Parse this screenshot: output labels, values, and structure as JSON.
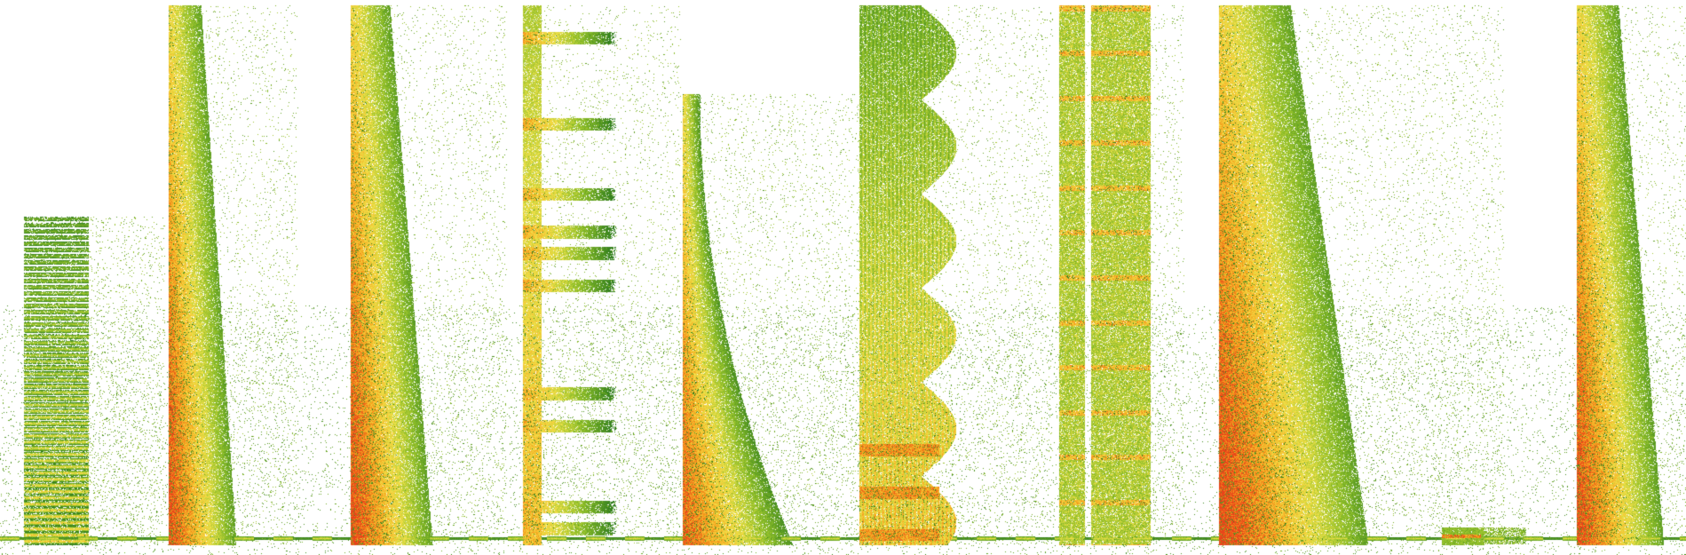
{
  "image": {
    "kind": "spectrogram",
    "description_label": "",
    "background_color": "#ffffff",
    "colormap": [
      "#ffffff",
      "#2e7d1e",
      "#8fbf2a",
      "#f2e24a",
      "#f5a21c",
      "#e8431a"
    ]
  },
  "chart_data": {
    "type": "heatmap",
    "title": "",
    "xlabel": "",
    "ylabel": "",
    "segments": [
      {
        "start": 0.014,
        "end": 0.052,
        "low": 0.02,
        "high": 0.61,
        "peak": 0.82,
        "pattern": "bands"
      },
      {
        "start": 0.1,
        "end": 0.135,
        "low": 0.02,
        "high": 0.99,
        "peak": 0.85,
        "pattern": "taper"
      },
      {
        "start": 0.208,
        "end": 0.25,
        "low": 0.02,
        "high": 0.99,
        "peak": 0.88,
        "pattern": "taper"
      },
      {
        "start": 0.31,
        "end": 0.353,
        "low": 0.02,
        "high": 0.99,
        "peak": 0.8,
        "pattern": "harmonics"
      },
      {
        "start": 0.405,
        "end": 0.455,
        "low": 0.02,
        "high": 0.83,
        "peak": 0.82,
        "pattern": "decay"
      },
      {
        "start": 0.51,
        "end": 0.562,
        "low": 0.02,
        "high": 0.99,
        "peak": 0.86,
        "pattern": "striped"
      },
      {
        "start": 0.628,
        "end": 0.662,
        "low": 0.02,
        "high": 0.99,
        "peak": 0.87,
        "pattern": "chirps"
      },
      {
        "start": 0.723,
        "end": 0.8,
        "low": 0.02,
        "high": 0.99,
        "peak": 0.9,
        "pattern": "block"
      },
      {
        "start": 0.855,
        "end": 0.878,
        "low": 0.02,
        "high": 0.05,
        "peak": 0.92,
        "pattern": "tone"
      },
      {
        "start": 0.935,
        "end": 0.98,
        "low": 0.02,
        "high": 0.99,
        "peak": 0.86,
        "pattern": "taper"
      }
    ],
    "baseline_hum": {
      "level": 0.015,
      "intensity": 0.6
    },
    "noise_density": 0.06
  }
}
